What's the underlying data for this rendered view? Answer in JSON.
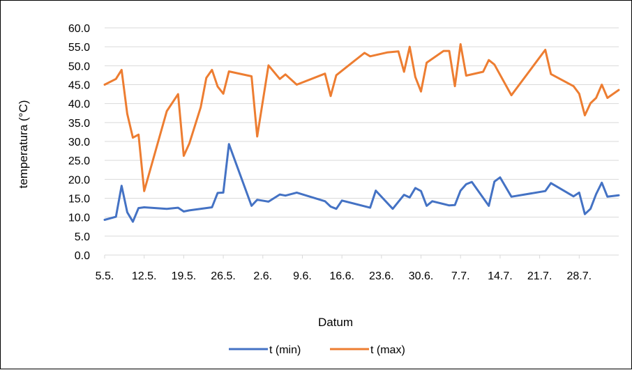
{
  "chart_data": {
    "type": "line",
    "title": "",
    "xlabel": "Datum",
    "ylabel": "temperatura (°C)",
    "ylim": [
      0,
      60
    ],
    "y_ticks": [
      "0.0",
      "5.0",
      "10.0",
      "15.0",
      "20.0",
      "25.0",
      "30.0",
      "35.0",
      "40.0",
      "45.0",
      "50.0",
      "55.0",
      "60.0"
    ],
    "x_range": [
      "2021-05-05",
      "2021-08-02"
    ],
    "x_ticks": [
      {
        "date": "2021-05-05",
        "label": "5.5."
      },
      {
        "date": "2021-05-12",
        "label": "12.5."
      },
      {
        "date": "2021-05-19",
        "label": "19.5."
      },
      {
        "date": "2021-05-26",
        "label": "26.5."
      },
      {
        "date": "2021-06-02",
        "label": "2.6."
      },
      {
        "date": "2021-06-09",
        "label": "9.6."
      },
      {
        "date": "2021-06-16",
        "label": "16.6."
      },
      {
        "date": "2021-06-23",
        "label": "23.6."
      },
      {
        "date": "2021-06-30",
        "label": "30.6."
      },
      {
        "date": "2021-07-07",
        "label": "7.7."
      },
      {
        "date": "2021-07-14",
        "label": "14.7."
      },
      {
        "date": "2021-07-21",
        "label": "21.7."
      },
      {
        "date": "2021-07-28",
        "label": "28.7."
      }
    ],
    "grid": true,
    "legend_position": "bottom",
    "series": [
      {
        "name": "t (min)",
        "color": "#4472C4",
        "points": [
          [
            "2021-05-05",
            9.3
          ],
          [
            "2021-05-07",
            10.1
          ],
          [
            "2021-05-08",
            18.3
          ],
          [
            "2021-05-09",
            11.3
          ],
          [
            "2021-05-10",
            8.8
          ],
          [
            "2021-05-11",
            12.4
          ],
          [
            "2021-05-12",
            12.6
          ],
          [
            "2021-05-14",
            12.4
          ],
          [
            "2021-05-16",
            12.2
          ],
          [
            "2021-05-18",
            12.5
          ],
          [
            "2021-05-19",
            11.5
          ],
          [
            "2021-05-20",
            11.8
          ],
          [
            "2021-05-24",
            12.6
          ],
          [
            "2021-05-25",
            16.4
          ],
          [
            "2021-05-26",
            16.5
          ],
          [
            "2021-05-27",
            29.3
          ],
          [
            "2021-05-31",
            13.0
          ],
          [
            "2021-06-01",
            14.6
          ],
          [
            "2021-06-03",
            14.1
          ],
          [
            "2021-06-05",
            16.0
          ],
          [
            "2021-06-06",
            15.7
          ],
          [
            "2021-06-08",
            16.5
          ],
          [
            "2021-06-13",
            14.2
          ],
          [
            "2021-06-14",
            12.8
          ],
          [
            "2021-06-15",
            12.2
          ],
          [
            "2021-06-16",
            14.4
          ],
          [
            "2021-06-21",
            12.5
          ],
          [
            "2021-06-22",
            17.0
          ],
          [
            "2021-06-25",
            12.2
          ],
          [
            "2021-06-27",
            15.9
          ],
          [
            "2021-06-28",
            15.2
          ],
          [
            "2021-06-29",
            17.7
          ],
          [
            "2021-06-30",
            16.9
          ],
          [
            "2021-07-01",
            13.0
          ],
          [
            "2021-07-02",
            14.2
          ],
          [
            "2021-07-05",
            13.1
          ],
          [
            "2021-07-06",
            13.2
          ],
          [
            "2021-07-07",
            17.0
          ],
          [
            "2021-07-08",
            18.7
          ],
          [
            "2021-07-09",
            19.3
          ],
          [
            "2021-07-12",
            13.0
          ],
          [
            "2021-07-13",
            19.4
          ],
          [
            "2021-07-14",
            20.5
          ],
          [
            "2021-07-16",
            15.4
          ],
          [
            "2021-07-22",
            16.9
          ],
          [
            "2021-07-23",
            19.0
          ],
          [
            "2021-07-27",
            15.5
          ],
          [
            "2021-07-28",
            16.5
          ],
          [
            "2021-07-29",
            10.8
          ],
          [
            "2021-07-30",
            12.2
          ],
          [
            "2021-07-31",
            16.1
          ],
          [
            "2021-08-01",
            19.1
          ],
          [
            "2021-08-02",
            15.4
          ],
          [
            "2021-08-04",
            15.8
          ]
        ]
      },
      {
        "name": "t (max)",
        "color": "#ED7D31",
        "points": [
          [
            "2021-05-05",
            45.0
          ],
          [
            "2021-05-07",
            46.5
          ],
          [
            "2021-05-08",
            48.9
          ],
          [
            "2021-05-09",
            37.3
          ],
          [
            "2021-05-10",
            31.0
          ],
          [
            "2021-05-11",
            31.8
          ],
          [
            "2021-05-12",
            16.9
          ],
          [
            "2021-05-16",
            38.0
          ],
          [
            "2021-05-18",
            42.5
          ],
          [
            "2021-05-19",
            26.2
          ],
          [
            "2021-05-20",
            29.5
          ],
          [
            "2021-05-22",
            39.0
          ],
          [
            "2021-05-23",
            46.8
          ],
          [
            "2021-05-24",
            48.9
          ],
          [
            "2021-05-25",
            44.5
          ],
          [
            "2021-05-26",
            42.6
          ],
          [
            "2021-05-27",
            48.5
          ],
          [
            "2021-05-31",
            47.2
          ],
          [
            "2021-06-01",
            31.3
          ],
          [
            "2021-06-03",
            50.1
          ],
          [
            "2021-06-05",
            46.5
          ],
          [
            "2021-06-06",
            47.7
          ],
          [
            "2021-06-08",
            45.0
          ],
          [
            "2021-06-13",
            47.9
          ],
          [
            "2021-06-14",
            42.0
          ],
          [
            "2021-06-15",
            47.5
          ],
          [
            "2021-06-20",
            53.4
          ],
          [
            "2021-06-21",
            52.5
          ],
          [
            "2021-06-24",
            53.5
          ],
          [
            "2021-06-26",
            53.8
          ],
          [
            "2021-06-27",
            48.4
          ],
          [
            "2021-06-28",
            55.0
          ],
          [
            "2021-06-29",
            47.0
          ],
          [
            "2021-06-30",
            43.2
          ],
          [
            "2021-07-01",
            50.8
          ],
          [
            "2021-07-04",
            53.9
          ],
          [
            "2021-07-05",
            53.9
          ],
          [
            "2021-07-06",
            44.6
          ],
          [
            "2021-07-07",
            55.7
          ],
          [
            "2021-07-08",
            47.4
          ],
          [
            "2021-07-11",
            48.4
          ],
          [
            "2021-07-12",
            51.5
          ],
          [
            "2021-07-13",
            50.3
          ],
          [
            "2021-07-16",
            42.2
          ],
          [
            "2021-07-22",
            54.2
          ],
          [
            "2021-07-23",
            47.8
          ],
          [
            "2021-07-27",
            44.6
          ],
          [
            "2021-07-28",
            42.6
          ],
          [
            "2021-07-29",
            36.9
          ],
          [
            "2021-07-30",
            40.1
          ],
          [
            "2021-07-31",
            41.5
          ],
          [
            "2021-08-01",
            45.0
          ],
          [
            "2021-08-02",
            41.5
          ],
          [
            "2021-08-04",
            43.6
          ]
        ]
      }
    ]
  }
}
